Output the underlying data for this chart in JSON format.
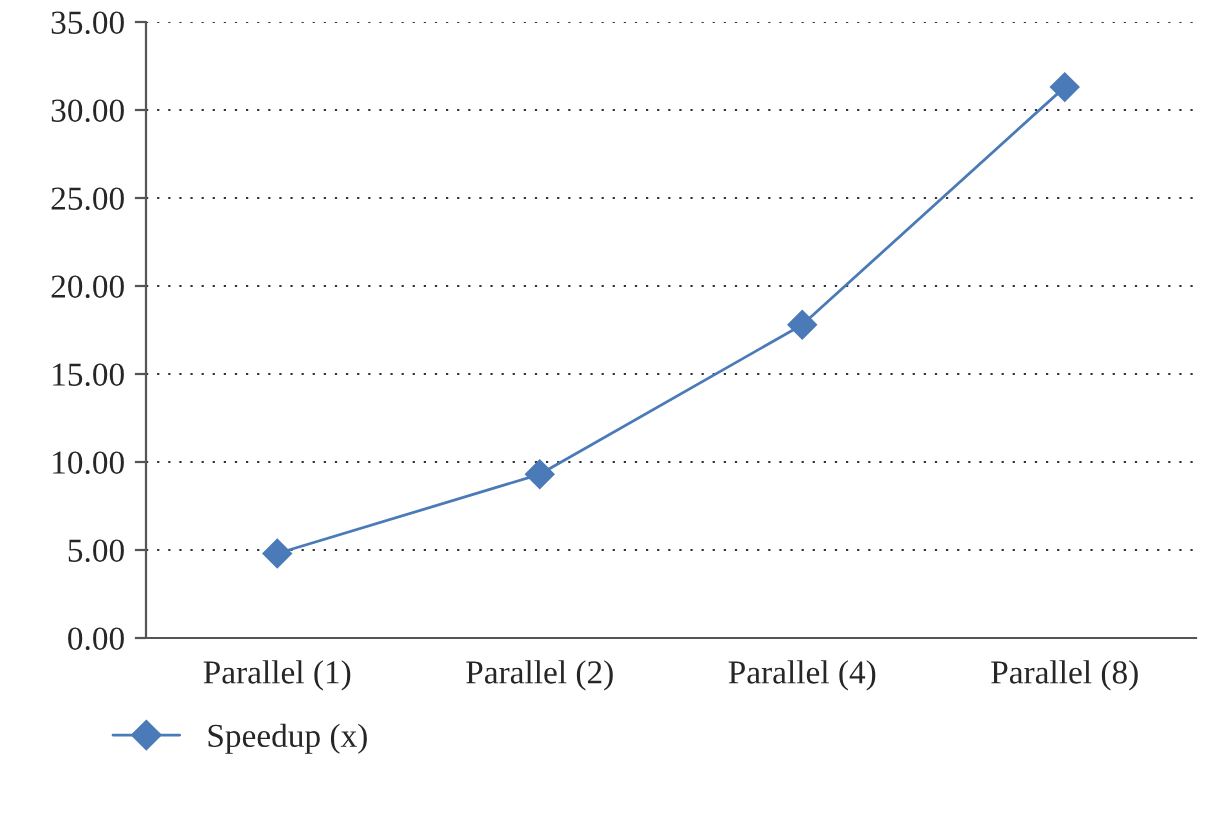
{
  "chart_data": {
    "type": "line",
    "categories": [
      "Parallel (1)",
      "Parallel (2)",
      "Parallel (4)",
      "Parallel (8)"
    ],
    "series": [
      {
        "name": "Speedup (x)",
        "color": "#4a7ab8",
        "values": [
          4.8,
          9.3,
          17.8,
          31.3
        ]
      }
    ],
    "ylim": [
      0,
      35
    ],
    "yticks": [
      {
        "value": 0,
        "label": "0.00"
      },
      {
        "value": 5,
        "label": "5.00"
      },
      {
        "value": 10,
        "label": "10.00"
      },
      {
        "value": 15,
        "label": "15.00"
      },
      {
        "value": 20,
        "label": "20.00"
      },
      {
        "value": 25,
        "label": "25.00"
      },
      {
        "value": 30,
        "label": "30.00"
      },
      {
        "value": 35,
        "label": "35.00"
      }
    ],
    "grid": "y",
    "legend": "bottom left",
    "marker": "diamond",
    "line_style": "solid"
  }
}
